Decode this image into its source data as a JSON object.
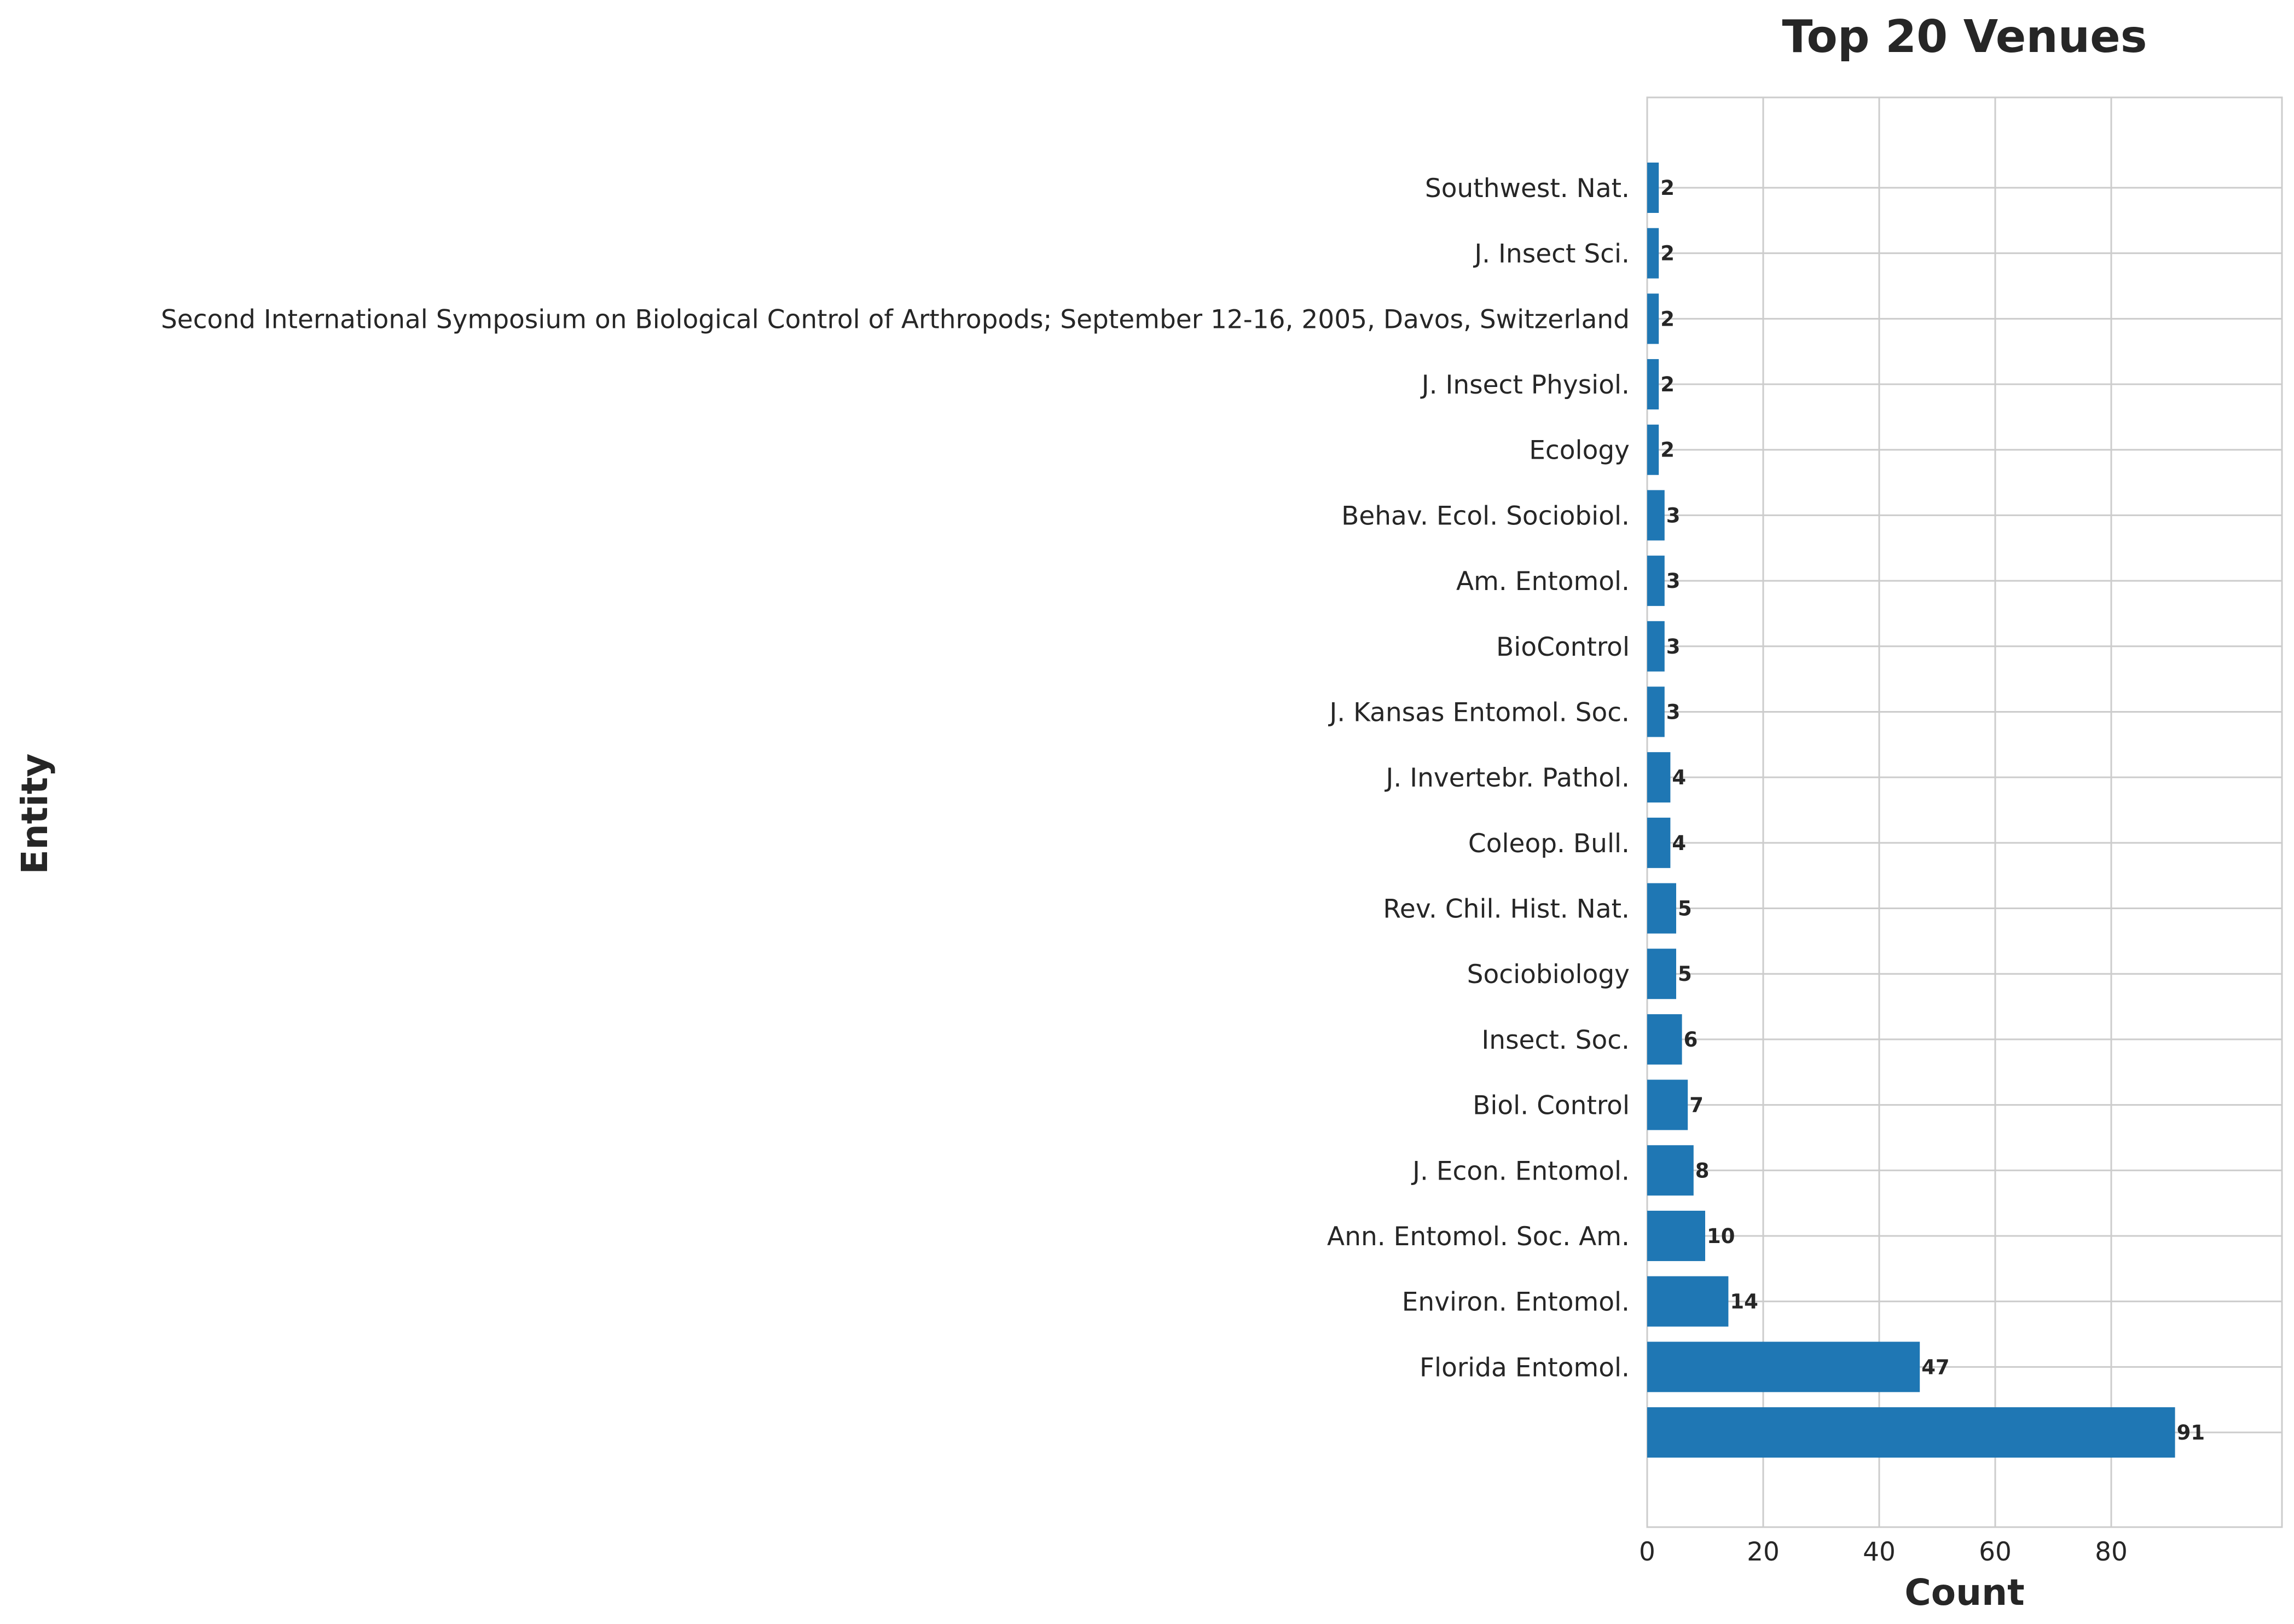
{
  "chart_data": {
    "type": "bar",
    "orientation": "horizontal",
    "title": "Top 20 Venues",
    "xlabel": "Count",
    "ylabel": "Entity",
    "xlim": [
      0,
      95.5
    ],
    "xticks": [
      "0",
      "20",
      "40",
      "60",
      "80"
    ],
    "grid": true,
    "bar_color": "#1f77b4",
    "categories": [
      "Southwest. Nat.",
      "J. Insect Sci.",
      "Second International Symposium on Biological Control of Arthropods; September 12-16, 2005, Davos, Switzerland",
      "J. Insect Physiol.",
      "Ecology",
      "Behav. Ecol. Sociobiol.",
      "Am. Entomol.",
      "BioControl",
      "J. Kansas Entomol. Soc.",
      "J. Invertebr. Pathol.",
      "Coleop. Bull.",
      "Rev. Chil. Hist. Nat.",
      "Sociobiology",
      "Insect. Soc.",
      "Biol. Control",
      "J. Econ. Entomol.",
      "Ann. Entomol. Soc. Am.",
      "Environ. Entomol.",
      "Florida Entomol.",
      ""
    ],
    "values": [
      2,
      2,
      2,
      2,
      2,
      3,
      3,
      3,
      3,
      4,
      4,
      5,
      5,
      6,
      7,
      8,
      10,
      14,
      47,
      91
    ],
    "data_labels": [
      "2",
      "2",
      "2",
      "2",
      "2",
      "3",
      "3",
      "3",
      "3",
      "4",
      "4",
      "5",
      "5",
      "6",
      "7",
      "8",
      "10",
      "14",
      "47",
      "91"
    ]
  }
}
